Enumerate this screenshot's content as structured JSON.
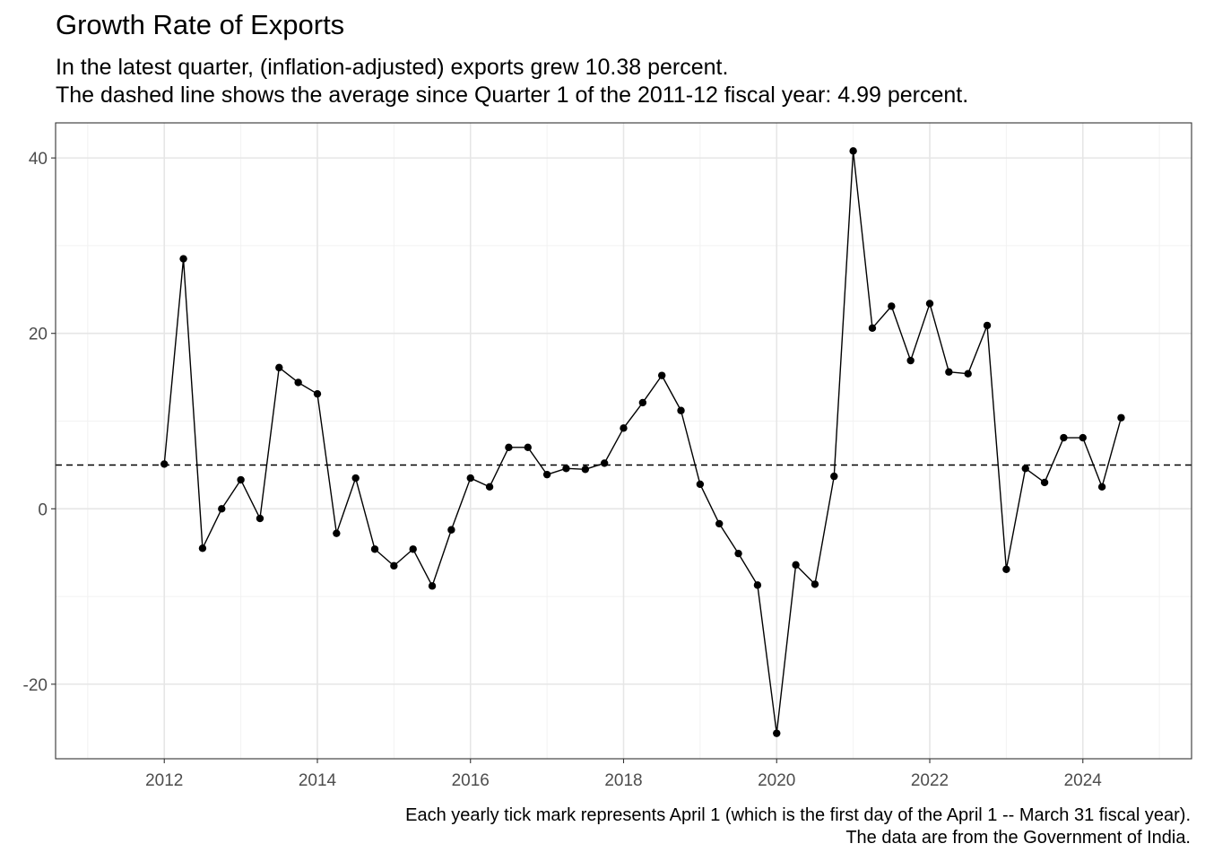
{
  "chart_data": {
    "type": "line",
    "title": "Growth Rate of Exports",
    "subtitle_lines": [
      "In the latest quarter, (inflation-adjusted) exports grew 10.38 percent.",
      "The dashed line shows the average since Quarter 1 of the 2011-12 fiscal year: 4.99 percent."
    ],
    "caption_lines": [
      "Each yearly tick mark represents April 1 (which is the first day of the April 1 -- March 31 fiscal year).",
      "The data are from the Government of India."
    ],
    "xlabel": "",
    "ylabel": "",
    "xlim": [
      2010.58,
      2025.42
    ],
    "ylim": [
      -28.5,
      44
    ],
    "x_ticks": [
      2012,
      2014,
      2016,
      2018,
      2020,
      2022,
      2024
    ],
    "x_minor_ticks": [
      2011,
      2013,
      2015,
      2017,
      2019,
      2021,
      2023,
      2025
    ],
    "y_ticks": [
      -20,
      0,
      20,
      40
    ],
    "y_minor_ticks": [
      -10,
      10,
      30
    ],
    "grid": true,
    "reference_line": {
      "y": 4.99,
      "style": "dashed"
    },
    "series": [
      {
        "x": [
          2012.0,
          2012.25,
          2012.5,
          2012.75,
          2013.0,
          2013.25,
          2013.5,
          2013.75,
          2014.0,
          2014.25,
          2014.5,
          2014.75,
          2015.0,
          2015.25,
          2015.5,
          2015.75,
          2016.0,
          2016.25,
          2016.5,
          2016.75,
          2017.0,
          2017.25,
          2017.5,
          2017.75,
          2018.0,
          2018.25,
          2018.5,
          2018.75,
          2019.0,
          2019.25,
          2019.5,
          2019.75,
          2020.0,
          2020.25,
          2020.5,
          2020.75,
          2021.0,
          2021.25,
          2021.5,
          2021.75,
          2022.0,
          2022.25,
          2022.5,
          2022.75,
          2023.0,
          2023.25,
          2023.5,
          2023.75,
          2024.0,
          2024.25,
          2024.5
        ],
        "y": [
          5.1,
          28.5,
          -4.5,
          0.0,
          3.3,
          -1.1,
          16.1,
          14.4,
          13.1,
          -2.8,
          3.5,
          -4.6,
          -6.5,
          -4.6,
          -8.8,
          -2.4,
          3.5,
          2.5,
          7.0,
          7.0,
          3.9,
          4.6,
          4.5,
          5.2,
          9.2,
          12.1,
          15.2,
          11.2,
          2.8,
          -1.7,
          -5.1,
          -8.7,
          -25.6,
          -6.4,
          -8.6,
          3.7,
          40.8,
          20.6,
          23.1,
          16.9,
          23.4,
          15.6,
          15.4,
          20.9,
          -6.9,
          4.6,
          3.0,
          8.1,
          8.1,
          2.5,
          10.38
        ]
      }
    ]
  }
}
